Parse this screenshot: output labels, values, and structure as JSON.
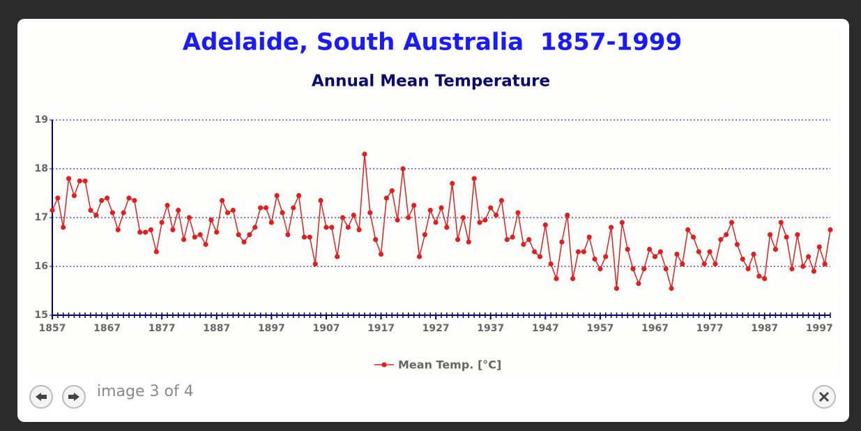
{
  "chart_data": {
    "type": "line",
    "title": "Adelaide, South Australia  1857-1999",
    "subtitle": "Annual Mean Temperature",
    "x": [
      1857,
      1858,
      1859,
      1860,
      1861,
      1862,
      1863,
      1864,
      1865,
      1866,
      1867,
      1868,
      1869,
      1870,
      1871,
      1872,
      1873,
      1874,
      1875,
      1876,
      1877,
      1878,
      1879,
      1880,
      1881,
      1882,
      1883,
      1884,
      1885,
      1886,
      1887,
      1888,
      1889,
      1890,
      1891,
      1892,
      1893,
      1894,
      1895,
      1896,
      1897,
      1898,
      1899,
      1900,
      1901,
      1902,
      1903,
      1904,
      1905,
      1906,
      1907,
      1908,
      1909,
      1910,
      1911,
      1912,
      1913,
      1914,
      1915,
      1916,
      1917,
      1918,
      1919,
      1920,
      1921,
      1922,
      1923,
      1924,
      1925,
      1926,
      1927,
      1928,
      1929,
      1930,
      1931,
      1932,
      1933,
      1934,
      1935,
      1936,
      1937,
      1938,
      1939,
      1940,
      1941,
      1942,
      1943,
      1944,
      1945,
      1946,
      1947,
      1948,
      1949,
      1950,
      1951,
      1952,
      1953,
      1954,
      1955,
      1956,
      1957,
      1958,
      1959,
      1960,
      1961,
      1962,
      1963,
      1964,
      1965,
      1966,
      1967,
      1968,
      1969,
      1970,
      1971,
      1972,
      1973,
      1974,
      1975,
      1976,
      1977,
      1978,
      1979,
      1980,
      1981,
      1982,
      1983,
      1984,
      1985,
      1986,
      1987,
      1988,
      1989,
      1990,
      1991,
      1992,
      1993,
      1994,
      1995,
      1996,
      1997,
      1998,
      1999
    ],
    "series": [
      {
        "name": "Mean Temp. [°C]",
        "color": "#e02020",
        "values": [
          17.15,
          17.4,
          16.8,
          17.8,
          17.45,
          17.75,
          17.75,
          17.15,
          17.05,
          17.35,
          17.4,
          17.1,
          16.75,
          17.1,
          17.4,
          17.35,
          16.7,
          16.7,
          16.75,
          16.3,
          16.9,
          17.25,
          16.75,
          17.15,
          16.55,
          17.0,
          16.6,
          16.65,
          16.45,
          16.95,
          16.7,
          17.35,
          17.1,
          17.15,
          16.65,
          16.5,
          16.65,
          16.8,
          17.2,
          17.2,
          16.9,
          17.45,
          17.1,
          16.65,
          17.2,
          17.45,
          16.6,
          16.6,
          16.05,
          17.35,
          16.8,
          16.8,
          16.2,
          17.0,
          16.8,
          17.05,
          16.75,
          18.3,
          17.1,
          16.55,
          16.25,
          17.4,
          17.55,
          16.95,
          18.0,
          17.0,
          17.25,
          16.2,
          16.65,
          17.15,
          16.9,
          17.2,
          16.8,
          17.7,
          16.55,
          17.0,
          16.5,
          17.8,
          16.9,
          16.95,
          17.2,
          17.05,
          17.35,
          16.55,
          16.6,
          17.1,
          16.45,
          16.55,
          16.3,
          16.2,
          16.85,
          16.05,
          15.75,
          16.5,
          17.05,
          15.75,
          16.3,
          16.3,
          16.6,
          16.15,
          15.95,
          16.2,
          16.8,
          15.55,
          16.9,
          16.35,
          15.95,
          15.65,
          15.95,
          16.35,
          16.2,
          16.3,
          15.95,
          15.55,
          16.25,
          16.05,
          16.75,
          16.6,
          16.3,
          16.05,
          16.3,
          16.05,
          16.55,
          16.65,
          16.9,
          16.45,
          16.15,
          15.95,
          16.25,
          15.8,
          15.75,
          16.65,
          16.35,
          16.9,
          16.6,
          15.95,
          16.65,
          16.0,
          16.2,
          15.9,
          16.4,
          16.05,
          16.75
        ]
      }
    ],
    "xlim": [
      1857,
      1999
    ],
    "xticks": [
      1857,
      1867,
      1877,
      1887,
      1897,
      1907,
      1917,
      1927,
      1937,
      1947,
      1957,
      1967,
      1977,
      1987,
      1997
    ],
    "ylim": [
      15,
      19
    ],
    "yticks": [
      15,
      16,
      17,
      18,
      19
    ],
    "grid": true,
    "legend": "bottom"
  },
  "lightbox": {
    "caption": "image 3 of 4"
  }
}
